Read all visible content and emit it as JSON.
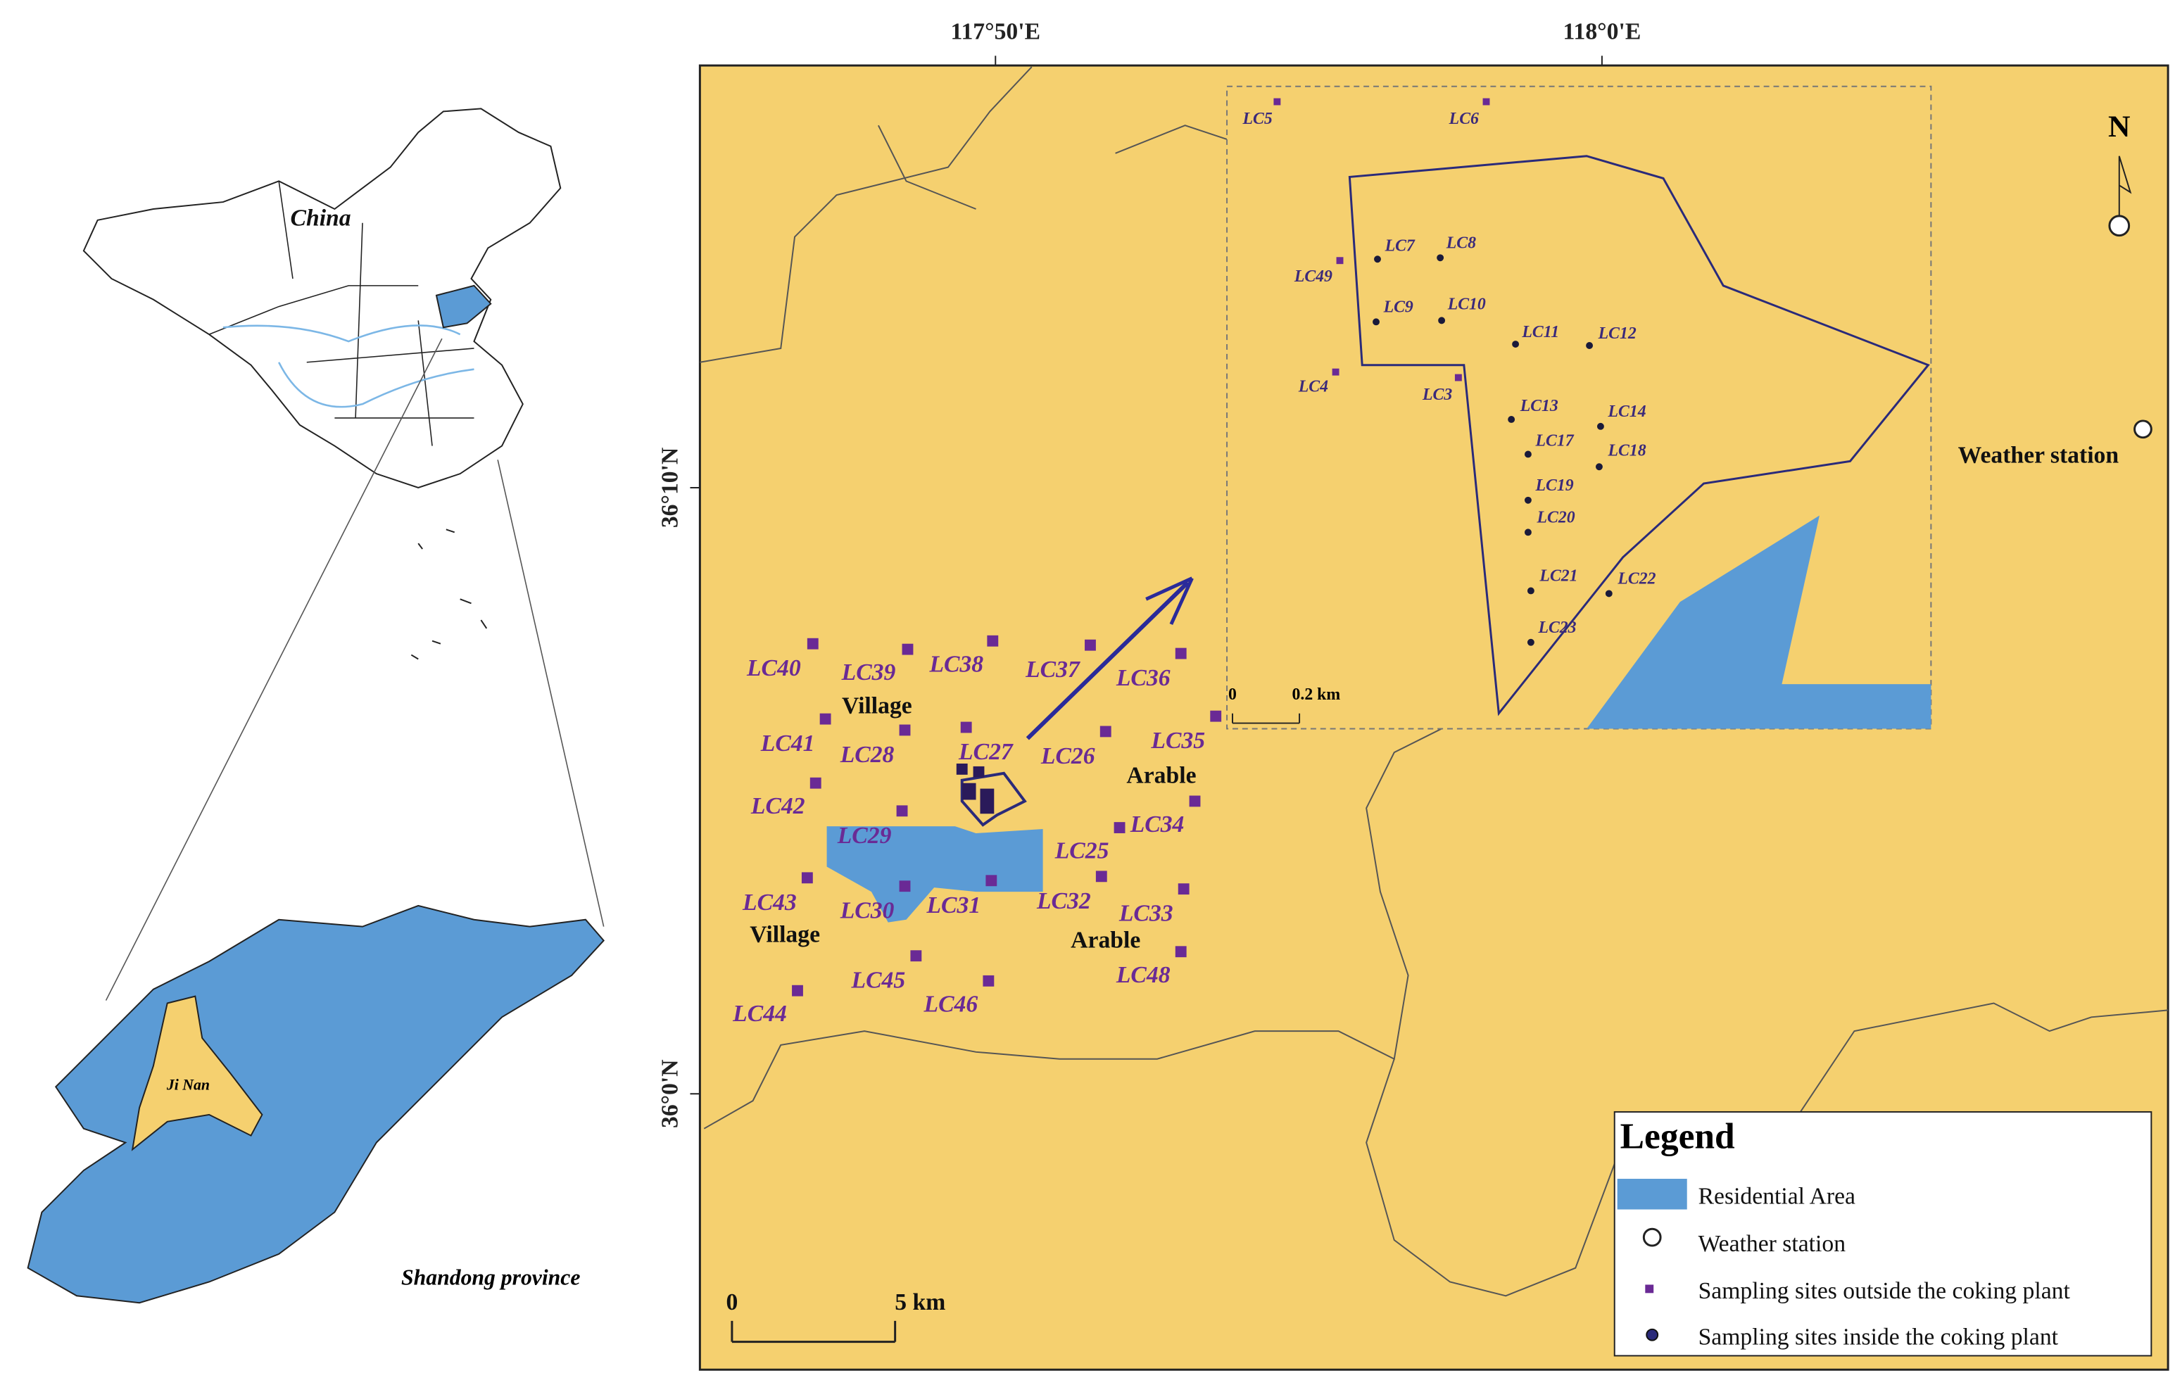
{
  "overview_map": {
    "country_label": "China",
    "city_label": "Ji Nan",
    "province_label": "Shandong province"
  },
  "main_map": {
    "x_axis_labels": [
      "117°50'E",
      "118°0'E"
    ],
    "y_axis_labels": [
      "36°10'N",
      "36°0'N"
    ],
    "north_label": "N",
    "weather_station_label": "Weather station",
    "land_use_labels": [
      "Village",
      "Arable",
      "Village",
      "Arable"
    ],
    "outside_sites": [
      "LC40",
      "LC39",
      "LC38",
      "LC37",
      "LC36",
      "LC35",
      "LC41",
      "LC28",
      "LC27",
      "LC26",
      "LC42",
      "LC29",
      "LC34",
      "LC25",
      "LC43",
      "LC30",
      "LC31",
      "LC32",
      "LC33",
      "LC45",
      "LC46",
      "LC48",
      "LC44"
    ],
    "scale_bar": {
      "start": "0",
      "end": "5 km"
    }
  },
  "inset_map": {
    "outside_sites": [
      "LC5",
      "LC6",
      "LC49",
      "LC4",
      "LC3"
    ],
    "inside_sites": [
      "LC7",
      "LC8",
      "LC9",
      "LC10",
      "LC11",
      "LC12",
      "LC13",
      "LC14",
      "LC17",
      "LC18",
      "LC19",
      "LC20",
      "LC21",
      "LC22",
      "LC23"
    ],
    "scale_bar": {
      "start": "0",
      "end": "0.2 km"
    }
  },
  "legend": {
    "title": "Legend",
    "items": [
      "Residential Area",
      "Weather station",
      "Sampling sites outside the coking plant",
      "Sampling sites inside the coking plant"
    ]
  }
}
